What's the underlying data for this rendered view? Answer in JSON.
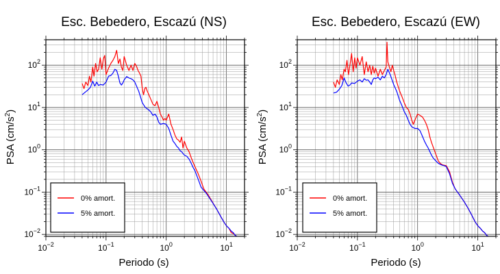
{
  "chart_data": [
    {
      "type": "line",
      "title": "Esc. Bebedero, Escazú (NS)",
      "xlabel": "Periodo (s)",
      "ylabel_main": "PSA (cm/s",
      "ylabel_sup": "2",
      "ylabel_end": ")",
      "xscale": "log",
      "yscale": "log",
      "xlim": [
        0.01,
        20
      ],
      "ylim": [
        0.009,
        400
      ],
      "x_ticks": [
        {
          "b": "10",
          "e": "−2"
        },
        {
          "b": "10",
          "e": "−1"
        },
        {
          "b": "10",
          "e": "0"
        },
        {
          "b": "10",
          "e": "1"
        }
      ],
      "y_ticks": [
        {
          "b": "10",
          "e": "−2"
        },
        {
          "b": "10",
          "e": "−1"
        },
        {
          "b": "10",
          "e": "0"
        },
        {
          "b": "10",
          "e": "1"
        },
        {
          "b": "10",
          "e": "2"
        }
      ],
      "grid": true,
      "legend_position": "bottom-left",
      "series": [
        {
          "name": "0% amort.",
          "color": "#ff0000",
          "x": [
            0.04,
            0.043,
            0.046,
            0.05,
            0.053,
            0.056,
            0.06,
            0.063,
            0.067,
            0.071,
            0.075,
            0.08,
            0.085,
            0.09,
            0.095,
            0.1,
            0.11,
            0.12,
            0.13,
            0.14,
            0.15,
            0.16,
            0.17,
            0.18,
            0.19,
            0.2,
            0.22,
            0.24,
            0.26,
            0.28,
            0.3,
            0.32,
            0.34,
            0.36,
            0.38,
            0.4,
            0.42,
            0.44,
            0.46,
            0.48,
            0.5,
            0.55,
            0.6,
            0.65,
            0.7,
            0.75,
            0.8,
            0.85,
            0.9,
            0.95,
            1.0,
            1.1,
            1.2,
            1.3,
            1.4,
            1.5,
            1.6,
            1.7,
            1.8,
            1.9,
            2.0,
            2.2,
            2.4,
            2.6,
            2.8,
            3.0,
            3.4,
            3.8,
            4.2,
            4.6,
            5.0,
            6,
            7,
            8,
            9,
            10,
            11,
            12,
            13,
            14,
            15
          ],
          "y": [
            37,
            28,
            40,
            33,
            55,
            40,
            90,
            55,
            110,
            70,
            80,
            150,
            80,
            140,
            170,
            60,
            85,
            110,
            130,
            160,
            225,
            110,
            140,
            90,
            75,
            160,
            100,
            75,
            100,
            75,
            110,
            95,
            75,
            65,
            55,
            28,
            20,
            28,
            30,
            25,
            22,
            16,
            12,
            11,
            14,
            10,
            7,
            6,
            5,
            5.5,
            5,
            7,
            4,
            3,
            2.2,
            1.8,
            1.7,
            1.5,
            2.0,
            1.1,
            1.6,
            1.1,
            0.9,
            0.65,
            0.5,
            0.4,
            0.27,
            0.18,
            0.12,
            0.1,
            0.085,
            0.055,
            0.038,
            0.027,
            0.02,
            0.016,
            0.014,
            0.011,
            0.0105,
            0.0095,
            0.009
          ]
        },
        {
          "name": "5% amort.",
          "color": "#0000ff",
          "x": [
            0.04,
            0.045,
            0.05,
            0.055,
            0.06,
            0.065,
            0.07,
            0.075,
            0.08,
            0.09,
            0.1,
            0.11,
            0.12,
            0.13,
            0.14,
            0.15,
            0.16,
            0.17,
            0.18,
            0.19,
            0.2,
            0.22,
            0.24,
            0.26,
            0.28,
            0.3,
            0.35,
            0.4,
            0.45,
            0.5,
            0.55,
            0.6,
            0.65,
            0.7,
            0.75,
            0.8,
            0.9,
            1.0,
            1.1,
            1.2,
            1.3,
            1.4,
            1.5,
            1.6,
            1.7,
            1.8,
            2.0,
            2.2,
            2.4,
            2.6,
            2.8,
            3.0,
            3.4,
            3.8,
            4.2,
            4.6,
            5.0,
            6,
            7,
            8,
            9,
            10,
            11,
            12,
            13,
            14,
            15
          ],
          "y": [
            20,
            23,
            26,
            30,
            42,
            32,
            40,
            33,
            35,
            34,
            40,
            55,
            57,
            65,
            80,
            75,
            55,
            38,
            34,
            38,
            45,
            54,
            50,
            48,
            45,
            40,
            24,
            13,
            10,
            9,
            8,
            6.5,
            7,
            6,
            4.5,
            4,
            4.2,
            4,
            3.2,
            2.2,
            1.6,
            1.4,
            1.2,
            1.1,
            0.95,
            0.9,
            0.75,
            0.7,
            0.6,
            0.48,
            0.38,
            0.32,
            0.2,
            0.13,
            0.11,
            0.095,
            0.08,
            0.054,
            0.038,
            0.027,
            0.02,
            0.016,
            0.014,
            0.012,
            0.011,
            0.0095,
            0.009
          ]
        }
      ]
    },
    {
      "type": "line",
      "title": "Esc. Bebedero, Escazú (EW)",
      "xlabel": "Periodo (s)",
      "ylabel_main": "PSA (cm/s",
      "ylabel_sup": "2",
      "ylabel_end": ")",
      "xscale": "log",
      "yscale": "log",
      "xlim": [
        0.01,
        20
      ],
      "ylim": [
        0.009,
        400
      ],
      "x_ticks": [
        {
          "b": "10",
          "e": "−2"
        },
        {
          "b": "10",
          "e": "−1"
        },
        {
          "b": "10",
          "e": "0"
        },
        {
          "b": "10",
          "e": "1"
        }
      ],
      "y_ticks": [
        {
          "b": "10",
          "e": "−2"
        },
        {
          "b": "10",
          "e": "−1"
        },
        {
          "b": "10",
          "e": "0"
        },
        {
          "b": "10",
          "e": "1"
        },
        {
          "b": "10",
          "e": "2"
        }
      ],
      "grid": true,
      "legend_position": "bottom-left",
      "series": [
        {
          "name": "0% amort.",
          "color": "#ff0000",
          "x": [
            0.04,
            0.043,
            0.046,
            0.05,
            0.053,
            0.056,
            0.06,
            0.063,
            0.067,
            0.071,
            0.075,
            0.08,
            0.085,
            0.09,
            0.095,
            0.1,
            0.11,
            0.12,
            0.13,
            0.14,
            0.15,
            0.16,
            0.17,
            0.18,
            0.19,
            0.2,
            0.22,
            0.24,
            0.26,
            0.28,
            0.3,
            0.31,
            0.32,
            0.34,
            0.36,
            0.38,
            0.4,
            0.42,
            0.45,
            0.5,
            0.55,
            0.6,
            0.65,
            0.7,
            0.75,
            0.8,
            0.85,
            0.9,
            1.0,
            1.1,
            1.2,
            1.3,
            1.4,
            1.5,
            1.6,
            1.7,
            1.8,
            2.0,
            2.2,
            2.4,
            2.6,
            2.8,
            3.0,
            3.4,
            3.8,
            4.2,
            4.6,
            5.0,
            6,
            7,
            8,
            9,
            10,
            11,
            12,
            13,
            14,
            15
          ],
          "y": [
            40,
            30,
            45,
            35,
            60,
            45,
            80,
            70,
            130,
            60,
            100,
            190,
            70,
            150,
            85,
            150,
            100,
            160,
            60,
            120,
            70,
            100,
            60,
            95,
            65,
            85,
            55,
            80,
            60,
            75,
            90,
            350,
            120,
            90,
            70,
            100,
            75,
            60,
            40,
            25,
            18,
            13,
            10,
            9,
            7,
            5,
            4,
            5,
            7,
            6.5,
            6,
            5,
            4,
            3,
            2,
            1.5,
            1.2,
            0.8,
            0.55,
            0.47,
            0.44,
            0.43,
            0.42,
            0.3,
            0.17,
            0.12,
            0.1,
            0.085,
            0.058,
            0.04,
            0.028,
            0.02,
            0.016,
            0.014,
            0.012,
            0.011,
            0.0095,
            0.009
          ]
        },
        {
          "name": "5% amort.",
          "color": "#0000ff",
          "x": [
            0.04,
            0.045,
            0.05,
            0.055,
            0.06,
            0.065,
            0.07,
            0.075,
            0.08,
            0.09,
            0.1,
            0.11,
            0.12,
            0.13,
            0.14,
            0.15,
            0.16,
            0.17,
            0.18,
            0.19,
            0.2,
            0.22,
            0.24,
            0.26,
            0.28,
            0.3,
            0.32,
            0.35,
            0.4,
            0.45,
            0.5,
            0.55,
            0.6,
            0.65,
            0.7,
            0.75,
            0.8,
            0.9,
            1.0,
            1.1,
            1.2,
            1.3,
            1.4,
            1.5,
            1.6,
            1.7,
            1.8,
            2.0,
            2.2,
            2.4,
            2.6,
            2.8,
            3.0,
            3.4,
            3.8,
            4.2,
            4.6,
            5.0,
            6,
            7,
            8,
            9,
            10,
            11,
            12,
            13,
            14,
            15
          ],
          "y": [
            22,
            23,
            27,
            33,
            50,
            38,
            32,
            34,
            38,
            37,
            42,
            45,
            40,
            48,
            44,
            45,
            40,
            35,
            45,
            50,
            48,
            52,
            45,
            55,
            50,
            60,
            80,
            60,
            35,
            24,
            15,
            11,
            8,
            6.5,
            5,
            4,
            3.5,
            3.2,
            3.2,
            2.8,
            2.1,
            1.6,
            1.3,
            1.1,
            0.9,
            0.75,
            0.65,
            0.55,
            0.48,
            0.45,
            0.43,
            0.42,
            0.4,
            0.27,
            0.16,
            0.12,
            0.1,
            0.085,
            0.058,
            0.04,
            0.028,
            0.02,
            0.016,
            0.014,
            0.012,
            0.011,
            0.0095,
            0.009
          ]
        }
      ]
    }
  ]
}
